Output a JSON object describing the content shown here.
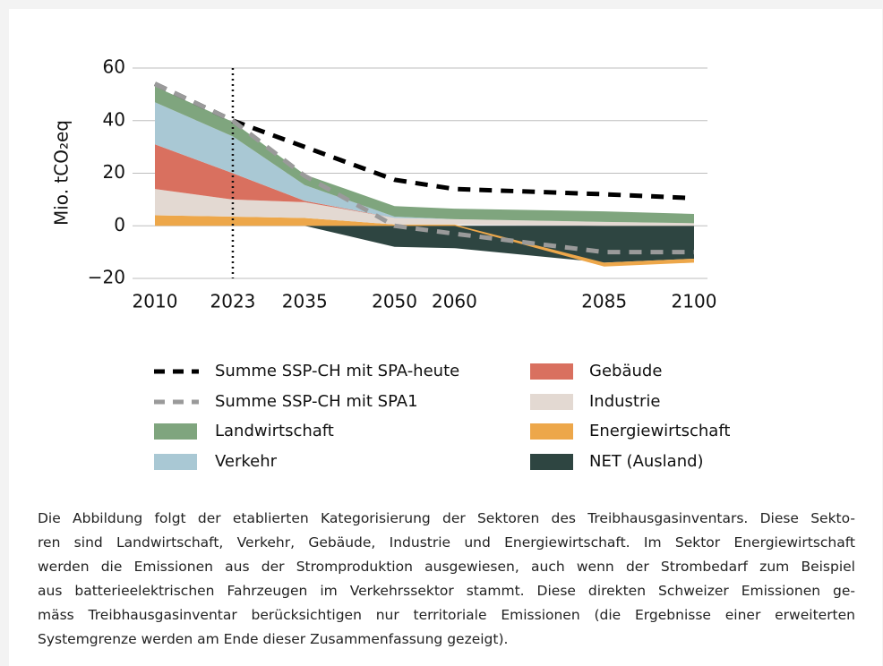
{
  "chart_data": {
    "type": "stacked_area",
    "y_label": "Mio. tCO₂eq",
    "x": [
      2010,
      2023,
      2035,
      2050,
      2060,
      2085,
      2100
    ],
    "xlim": [
      2010,
      2100
    ],
    "xticks": [
      2010,
      2023,
      2035,
      2050,
      2060,
      2085,
      2100
    ],
    "ylim": [
      -20,
      60
    ],
    "yticks": [
      {
        "value": -20,
        "label": "−20"
      },
      0,
      20,
      40,
      60
    ],
    "grid": true,
    "reference_x": 2023,
    "lines": [
      {
        "name": "Summe SSP-CH mit SPA-heute",
        "color": "#000000",
        "values": [
          54,
          40,
          30,
          17.5,
          14,
          12,
          10.5
        ]
      },
      {
        "name": "Summe SSP-CH mit SPA1",
        "color": "#9a9a9a",
        "values": [
          54,
          40,
          19,
          0,
          -3,
          -10,
          -10
        ]
      }
    ],
    "series": [
      {
        "name": "Landwirtschaft",
        "color": "#7fa57e",
        "values": [
          6,
          5.5,
          4,
          4,
          4,
          4,
          3.5
        ]
      },
      {
        "name": "Verkehr",
        "color": "#a9c8d4",
        "values": [
          16,
          14,
          6,
          0.5,
          0,
          0,
          0
        ]
      },
      {
        "name": "Gebäude",
        "color": "#d9705f",
        "values": [
          17,
          10,
          0.5,
          0,
          0,
          0,
          0
        ]
      },
      {
        "name": "Industrie",
        "color": "#e3d9d2",
        "values": [
          10,
          6.5,
          6,
          2.5,
          2,
          1.5,
          1
        ]
      },
      {
        "name": "Energiewirtschaft",
        "color": "#eda74a",
        "values": [
          4,
          3.5,
          3,
          0.5,
          0.5,
          -1.5,
          -1.5
        ]
      },
      {
        "name": "NET (Ausland)",
        "color": "#2e4541",
        "values": [
          0,
          0,
          0,
          -8,
          -8.5,
          -14,
          -12.5
        ]
      }
    ]
  },
  "caption": [
    "Die Abbildung folgt der etablierten Kategorisierung der Sektoren des Treibhausgasinventars. Diese Sekto-",
    "ren sind Landwirtschaft, Verkehr, Gebäude, Industrie und Energiewirtschaft. Im Sektor Energiewirtschaft",
    "werden die Emissionen aus der Stromproduktion ausgewiesen, auch wenn der Strombedarf zum Beispiel",
    "aus batterieelektrischen Fahrzeugen im Verkehrssektor stammt. Diese direkten Schweizer Emissionen ge-",
    "mäss Treibhausgasinventar berücksichtigen nur territoriale Emissionen (die Ergebnisse einer erweiterten",
    "Systemgrenze werden am Ende dieser Zusammenfassung gezeigt)."
  ]
}
